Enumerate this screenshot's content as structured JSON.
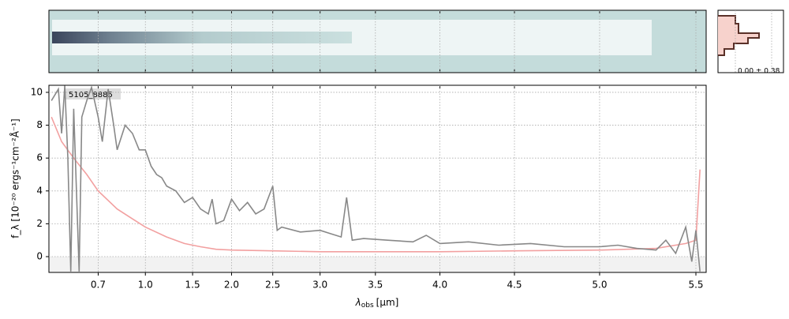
{
  "chart_data": {
    "type": "line",
    "xscale": "prism",
    "x_label": {
      "symbol": "λ",
      "subscript": "obs",
      "unit": "[μm]"
    },
    "y_label": "f_λ [10⁻²⁰ ergs⁻¹cm⁻²Å⁻¹]",
    "annotations": [
      "5105_8885",
      "0.00 ± 0.38"
    ],
    "xlim": [
      0.523,
      5.55
    ],
    "ylim": [
      -0.96,
      10.43
    ],
    "xticks": [
      0.7,
      {
        "value": 1,
        "label": "1.0"
      },
      1.5,
      {
        "value": 2,
        "label": "2.0"
      },
      2.5,
      {
        "value": 3,
        "label": "3.0"
      },
      3.5,
      {
        "value": 4,
        "label": "4.0"
      },
      4.5,
      {
        "value": 5,
        "label": "5.0"
      },
      5.5
    ],
    "yticks": [
      0,
      2,
      4,
      6,
      8,
      10
    ],
    "grid": true,
    "series": [
      {
        "color": "#888888",
        "x": [
          0.53,
          0.55,
          0.56,
          0.57,
          0.58,
          0.59,
          0.6,
          0.61,
          0.62,
          0.63,
          0.65,
          0.67,
          0.7,
          0.72,
          0.75,
          0.78,
          0.8,
          0.85,
          0.9,
          0.95,
          1.0,
          1.05,
          1.1,
          1.15,
          1.2,
          1.3,
          1.4,
          1.5,
          1.6,
          1.7,
          1.75,
          1.8,
          1.9,
          2.0,
          2.1,
          2.2,
          2.3,
          2.4,
          2.45,
          2.5,
          2.55,
          2.6,
          2.8,
          3.0,
          3.1,
          3.2,
          3.25,
          3.3,
          3.4,
          3.6,
          3.8,
          3.9,
          4.0,
          4.2,
          4.4,
          4.6,
          4.8,
          5.0,
          5.1,
          5.2,
          5.3,
          5.35,
          5.4,
          5.45,
          5.48,
          5.5,
          5.52
        ],
        "values": [
          9.5,
          10.2,
          7.5,
          10.4,
          6.0,
          -0.9,
          9.0,
          4.0,
          -0.9,
          8.5,
          9.5,
          10.3,
          8.5,
          7.0,
          10.2,
          8.0,
          6.5,
          8.0,
          7.5,
          6.5,
          6.5,
          5.5,
          5.0,
          4.8,
          4.3,
          4.0,
          3.3,
          3.6,
          2.9,
          2.6,
          3.5,
          2.0,
          2.2,
          3.5,
          2.8,
          3.3,
          2.6,
          2.9,
          3.6,
          4.3,
          1.6,
          1.8,
          1.5,
          1.6,
          1.4,
          1.2,
          3.6,
          1.0,
          1.1,
          1.0,
          0.9,
          1.3,
          0.8,
          0.9,
          0.7,
          0.8,
          0.6,
          0.6,
          0.7,
          0.5,
          0.4,
          1.0,
          0.2,
          1.8,
          -0.3,
          1.6,
          -0.9
        ]
      },
      {
        "color": "#f2a0a0",
        "x": [
          0.53,
          0.56,
          0.6,
          0.65,
          0.7,
          0.8,
          0.9,
          1.0,
          1.2,
          1.4,
          1.6,
          1.8,
          2.0,
          2.5,
          3.0,
          3.5,
          4.0,
          4.5,
          5.0,
          5.3,
          5.45,
          5.5,
          5.52
        ],
        "values": [
          8.5,
          7.0,
          6.0,
          5.0,
          4.0,
          2.9,
          2.3,
          1.8,
          1.2,
          0.8,
          0.6,
          0.45,
          0.4,
          0.35,
          0.3,
          0.3,
          0.3,
          0.35,
          0.4,
          0.5,
          0.8,
          1.0,
          5.3
        ]
      }
    ]
  }
}
